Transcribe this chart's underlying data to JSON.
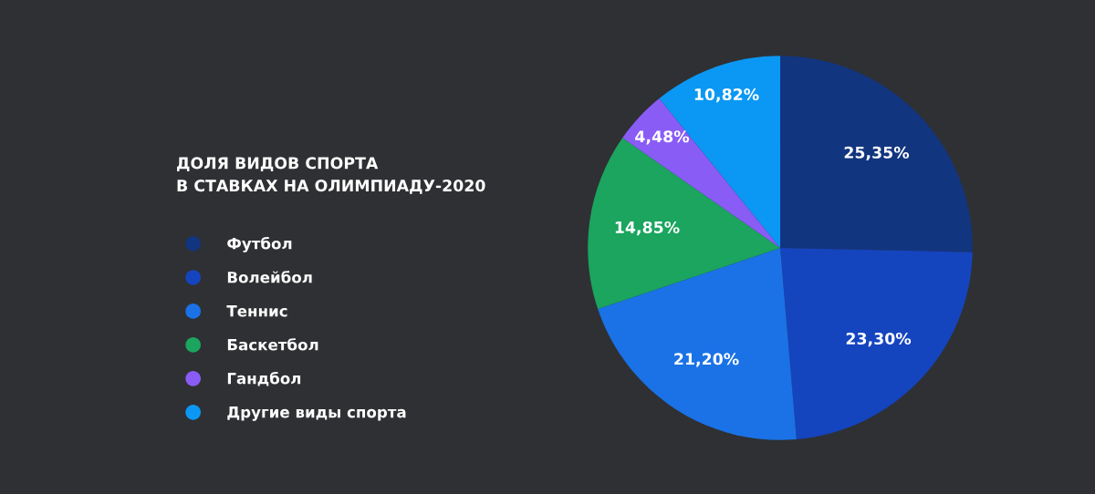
{
  "chart_data": {
    "type": "pie",
    "title": "ДОЛЯ ВИДОВ СПОРТА\nВ СТАВКАХ НА ОЛИМПИАДУ-2020",
    "categories": [
      "Футбол",
      "Волейбол",
      "Теннис",
      "Баскетбол",
      "Гандбол",
      "Другие виды спорта"
    ],
    "values": [
      25.35,
      23.3,
      21.2,
      14.85,
      4.48,
      10.82
    ],
    "value_labels": [
      "25,35%",
      "23,30%",
      "21,20%",
      "14,85%",
      "4,48%",
      "10,82%"
    ],
    "colors": [
      "#12357f",
      "#1544bf",
      "#1a72e6",
      "#1ba55f",
      "#8a5cf6",
      "#0b98f4"
    ],
    "legend": "left"
  }
}
